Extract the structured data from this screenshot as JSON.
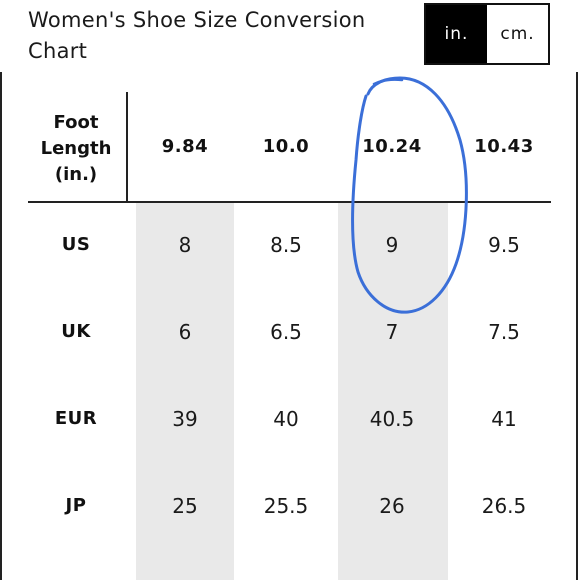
{
  "title": "Women's Shoe Size Conversion Chart",
  "unit_toggle": {
    "options": [
      "in.",
      "cm."
    ],
    "selected": "in."
  },
  "table": {
    "header_label": [
      "Foot",
      "Length",
      "(in.)"
    ],
    "columns": [
      "9.84",
      "10.0",
      "10.24",
      "10.43"
    ],
    "rows": [
      {
        "label": "US",
        "values": [
          "8",
          "8.5",
          "9",
          "9.5"
        ]
      },
      {
        "label": "UK",
        "values": [
          "6",
          "6.5",
          "7",
          "7.5"
        ]
      },
      {
        "label": "EUR",
        "values": [
          "39",
          "40",
          "40.5",
          "41"
        ]
      },
      {
        "label": "JP",
        "values": [
          "25",
          "25.5",
          "26",
          "26.5"
        ]
      }
    ],
    "shaded_columns": [
      0,
      2
    ]
  },
  "annotation": {
    "type": "hand-drawn-circle",
    "color": "#3b6fd8",
    "highlighted_column": 2
  }
}
